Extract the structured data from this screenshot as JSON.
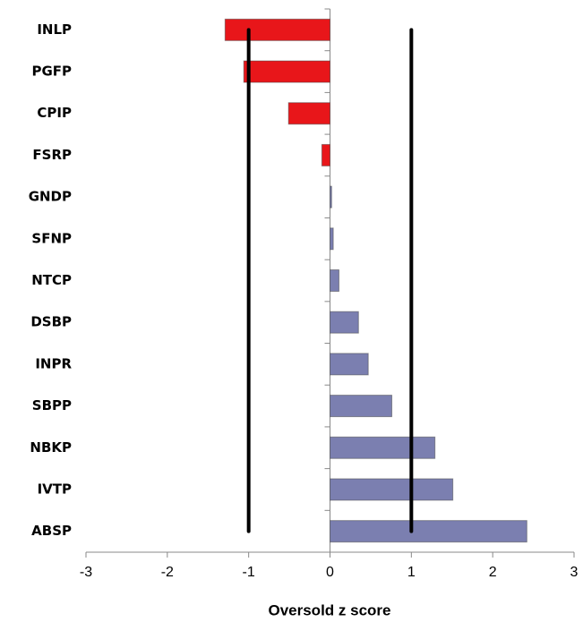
{
  "chart_data": {
    "type": "barh",
    "categories": [
      "INLP",
      "PGFP",
      "CPIP",
      "FSRP",
      "GNDP",
      "SFNP",
      "NTCP",
      "DSBP",
      "INPR",
      "SBPP",
      "NBKP",
      "IVTP",
      "ABSP"
    ],
    "values": [
      -1.29,
      -1.06,
      -0.51,
      -0.1,
      0.02,
      0.04,
      0.11,
      0.35,
      0.47,
      0.76,
      1.29,
      1.51,
      2.42
    ],
    "color_negative": "#e8161a",
    "color_positive": "#7b7fb0",
    "xlabel": "Oversold z score",
    "xlim": [
      -3,
      3
    ],
    "xticks": [
      -3,
      -2,
      -1,
      0,
      1,
      2,
      3
    ],
    "reference_lines": [
      -1,
      1
    ]
  }
}
